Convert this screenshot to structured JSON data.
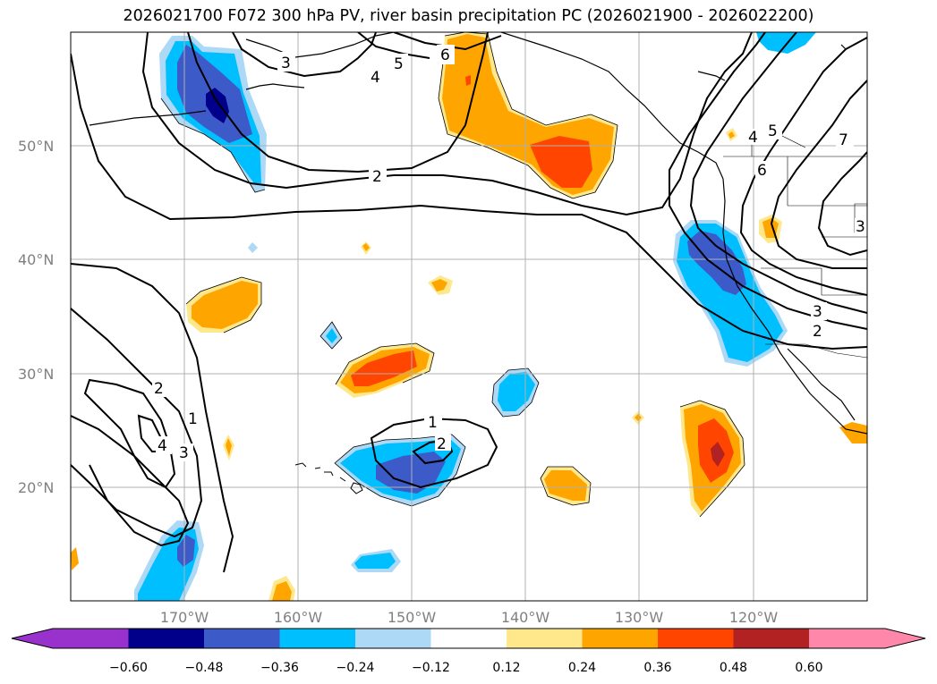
{
  "title": "2026021700 F072 300 hPa PV, river basin precipitation PC (2026021900 - 2026022200)",
  "map": {
    "lon_range": [
      -180,
      -110
    ],
    "lat_range": [
      10,
      60
    ],
    "lon_labels": [
      "170°W",
      "160°W",
      "150°W",
      "140°W",
      "130°W",
      "120°W"
    ],
    "lat_labels": [
      "50°N",
      "40°N",
      "30°N",
      "20°N"
    ],
    "pv_contour_labels": [
      "1",
      "2",
      "2",
      "2",
      "3",
      "3",
      "3",
      "4",
      "4",
      "5",
      "6",
      "6",
      "7",
      "2",
      "3",
      "4",
      "5"
    ]
  },
  "colorbar": {
    "ticks": [
      "−0.60",
      "−0.48",
      "−0.36",
      "−0.24",
      "−0.12",
      "0.12",
      "0.24",
      "0.36",
      "0.48",
      "0.60"
    ],
    "colors": [
      "#9932cc",
      "#00008b",
      "#3c5ac8",
      "#00bfff",
      "#add8f6",
      "#ffffff",
      "#ffe88c",
      "#ffa500",
      "#ff4500",
      "#b22222",
      "#ff88aa"
    ]
  }
}
